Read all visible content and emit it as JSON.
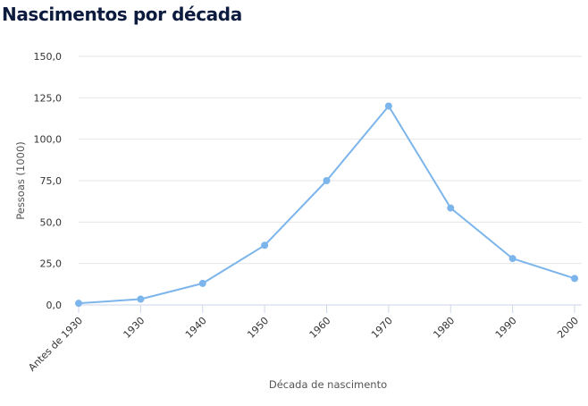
{
  "page": {
    "title": "Nascimentos por década"
  },
  "chart_data": {
    "type": "line",
    "title": "Nascimentos por década",
    "xlabel": "Década de nascimento",
    "ylabel": "Pessoas (1000)",
    "categories": [
      "Antes de 1930",
      "1930",
      "1940",
      "1950",
      "1960",
      "1970",
      "1980",
      "1990",
      "2000"
    ],
    "series": [
      {
        "values": [
          1,
          3.5,
          13,
          36,
          75,
          120,
          58.5,
          28,
          16
        ]
      }
    ],
    "ylim": [
      0,
      150
    ],
    "yticks": [
      "0,0",
      "25,0",
      "50,0",
      "75,0",
      "100,0",
      "125,0",
      "150,0"
    ],
    "grid": true,
    "colors": {
      "line": "#7cb5ec",
      "grid": "#e6e6e6",
      "axis": "#ccd6eb"
    }
  }
}
